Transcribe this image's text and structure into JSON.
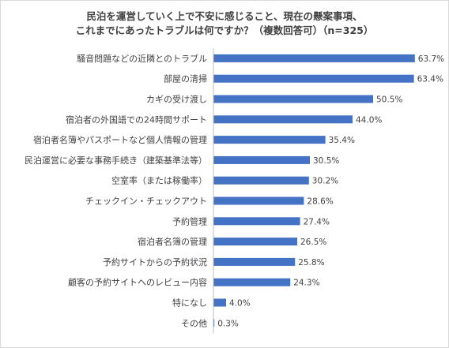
{
  "chart_data": {
    "type": "bar",
    "orientation": "horizontal",
    "title_lines": [
      "民泊を運営していく上で不安に感じること、現在の懸案事項、",
      "これまでにあったトラブルは何ですか？（複数回答可）（n=325）"
    ],
    "categories": [
      "騒音問題などの近隣とのトラブル",
      "部屋の清掃",
      "カギの受け渡し",
      "宿泊者の外国語での24時間サポート",
      "宿泊者名簿やパスポートなど個人情報の管理",
      "民泊運営に必要な事務手続き（建築基準法等）",
      "空室率（または稼働率）",
      "チェックイン・チェックアウト",
      "予約管理",
      "宿泊者名簿の管理",
      "予約サイトからの予約状況",
      "顧客の予約サイトへのレビュー内容",
      "特になし",
      "その他"
    ],
    "values": [
      63.7,
      63.4,
      50.5,
      44.0,
      35.4,
      30.5,
      30.2,
      28.6,
      27.4,
      26.5,
      25.8,
      24.3,
      4.0,
      0.3
    ],
    "value_labels": [
      "63.7%",
      "63.4%",
      "50.5%",
      "44.0%",
      "35.4%",
      "30.5%",
      "30.2%",
      "28.6%",
      "27.4%",
      "26.5%",
      "25.8%",
      "24.3%",
      "4.0%",
      "0.3%"
    ],
    "xlim": [
      0,
      65
    ],
    "grid": false,
    "legend": "none",
    "bar_color": "#4472c4",
    "axis_color": "#bfbfbf"
  }
}
